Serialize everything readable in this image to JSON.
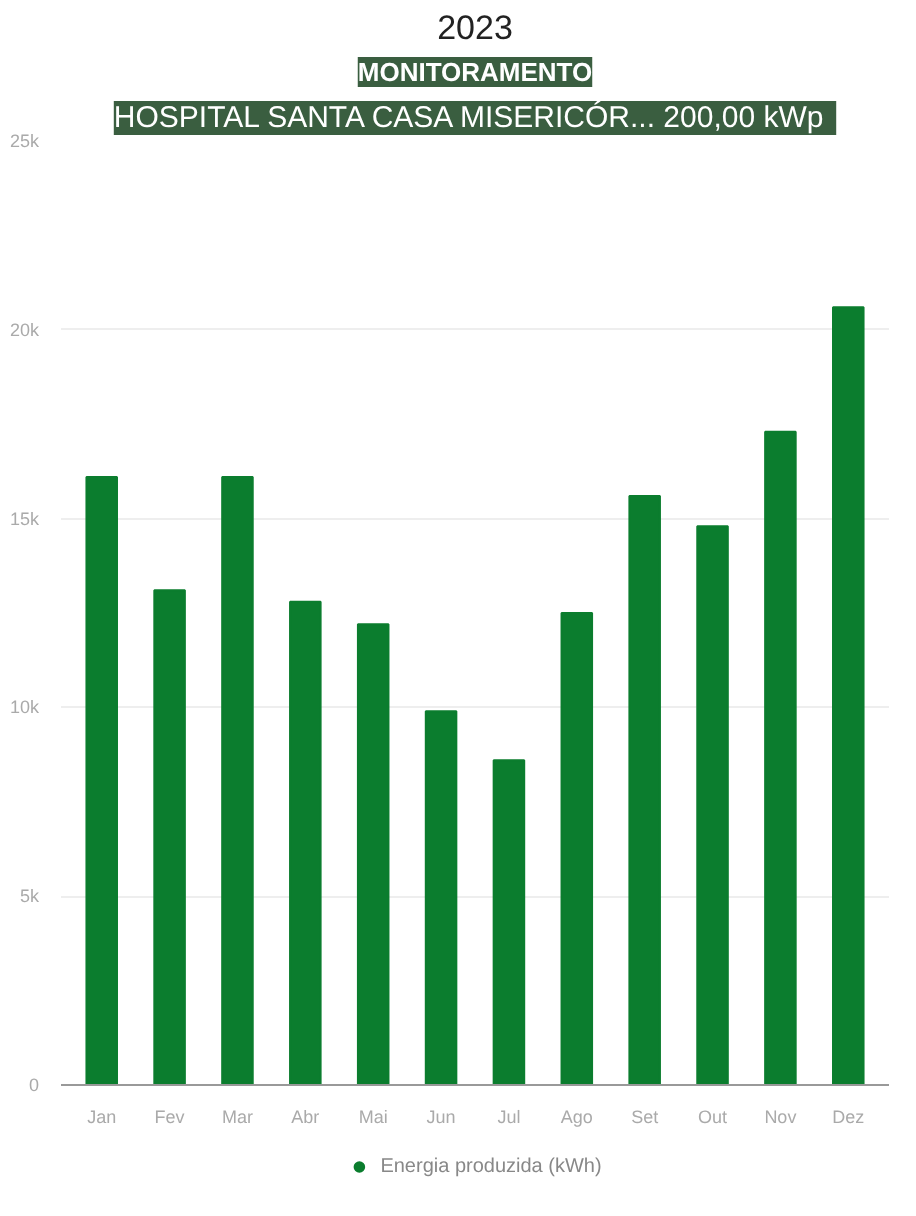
{
  "chart_data": {
    "type": "bar",
    "title": "2023",
    "annotations": [
      "MONITORAMENTO",
      "HOSPITAL SANTA CASA  MISERICÓR... 200,00 kWp"
    ],
    "categories": [
      "Jan",
      "Fev",
      "Mar",
      "Abr",
      "Mai",
      "Jun",
      "Jul",
      "Ago",
      "Set",
      "Out",
      "Nov",
      "Dez"
    ],
    "series": [
      {
        "name": "Energia produzida (kWh)",
        "color": "#0b7d2e",
        "values": [
          16100,
          13100,
          16100,
          12800,
          12200,
          9900,
          8600,
          12500,
          15600,
          14800,
          17300,
          20600
        ]
      }
    ],
    "ylim": [
      0,
      25000
    ],
    "yticks": [
      0,
      {
        "value": 5000,
        "label": "5k"
      },
      {
        "value": 10000,
        "label": "10k"
      },
      {
        "value": 15000,
        "label": "15k"
      },
      {
        "value": 20000,
        "label": "20k"
      },
      {
        "value": 25000,
        "label": "25k"
      }
    ],
    "grid": "y",
    "legend": "bottom"
  }
}
